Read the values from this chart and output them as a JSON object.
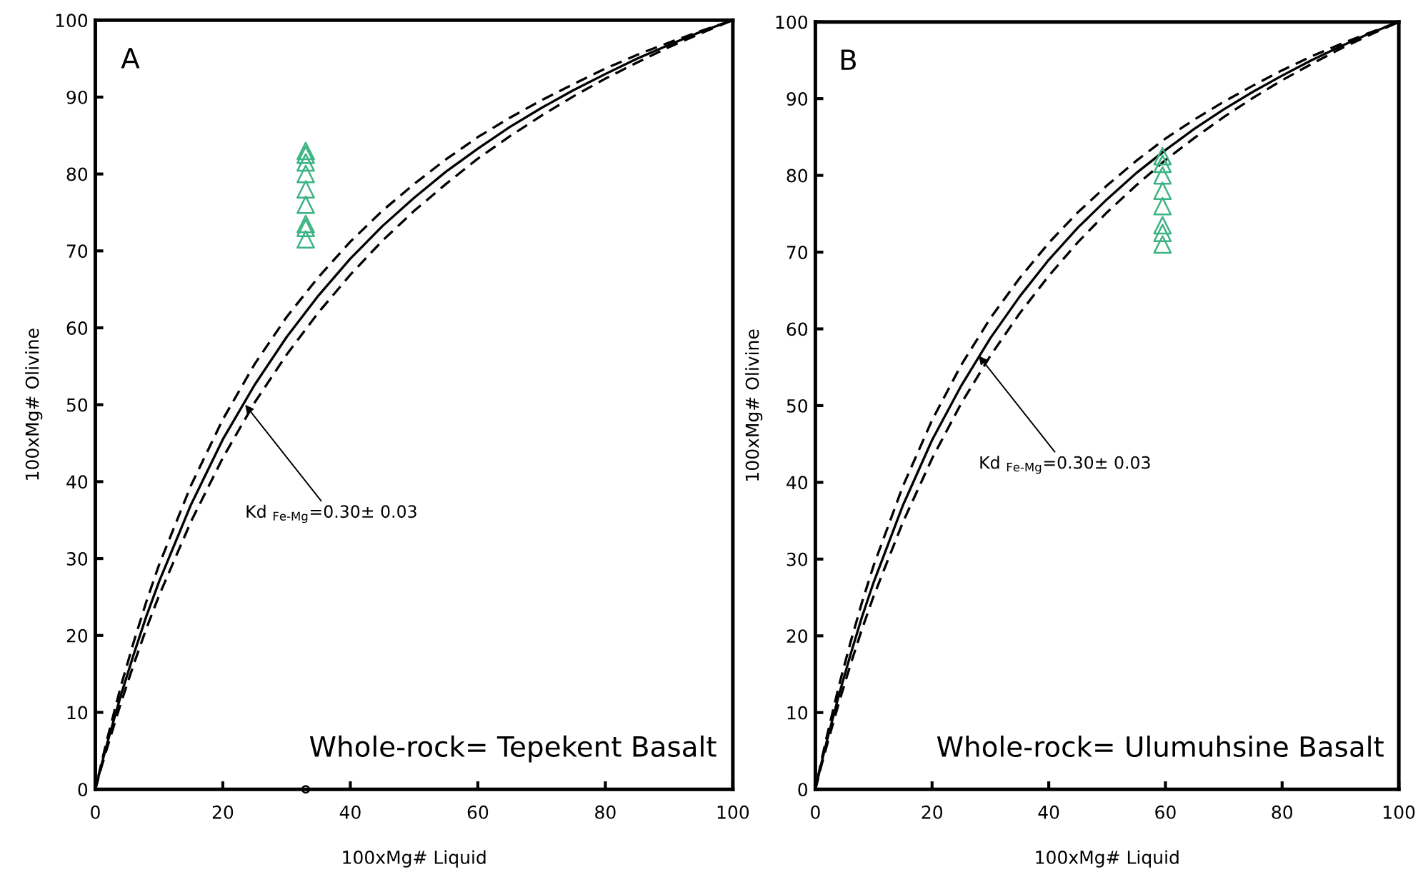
{
  "chart_data": [
    {
      "type": "scatter",
      "xlabel": "100xMg# Liquid",
      "ylabel": "100xMg# Olivine",
      "xlim": [
        0,
        100
      ],
      "ylim": [
        0,
        100
      ],
      "xticks": [
        0,
        20,
        40,
        60,
        80,
        100
      ],
      "yticks": [
        0,
        10,
        20,
        30,
        40,
        50,
        60,
        70,
        80,
        90,
        100
      ],
      "grid": false,
      "legend": false,
      "annotations": [
        "A",
        {
          "text": "Kd $_{Fe-Mg}$=0.30± 0.03",
          "x": 23.5,
          "y": 50
        },
        "Whole-rock= Tepekent Basalt"
      ],
      "series": [
        {
          "type": "line",
          "line_style": "solid",
          "marker": "none",
          "color": "#000000",
          "x": [
            0,
            1,
            2,
            4,
            6,
            8,
            10,
            15,
            20,
            25,
            30,
            35,
            40,
            45,
            50,
            55,
            60,
            65,
            70,
            75,
            80,
            85,
            90,
            95,
            100
          ],
          "values": [
            0,
            3.3,
            6.4,
            12.2,
            17.5,
            22.5,
            27.0,
            37.0,
            45.5,
            52.6,
            58.8,
            64.2,
            69.0,
            73.2,
            76.9,
            80.3,
            83.3,
            86.1,
            88.6,
            90.9,
            93.0,
            95.0,
            96.8,
            98.5,
            100
          ],
          "upper": [
            0,
            3.6,
            7.0,
            13.4,
            19.1,
            24.4,
            29.2,
            39.5,
            48.1,
            55.3,
            61.4,
            66.6,
            71.2,
            75.2,
            78.7,
            81.9,
            84.8,
            87.3,
            89.6,
            91.7,
            93.7,
            95.5,
            97.1,
            98.6,
            100
          ],
          "lower": [
            0,
            3.0,
            5.8,
            11.2,
            16.2,
            20.9,
            25.2,
            34.8,
            43.1,
            50.3,
            56.5,
            62.0,
            66.9,
            71.3,
            75.2,
            78.7,
            82.0,
            84.9,
            87.6,
            90.1,
            92.4,
            94.5,
            96.5,
            98.3,
            100
          ]
        },
        {
          "marker": "triangle",
          "color": "#3cb384",
          "x": [
            33,
            33,
            33,
            33,
            33,
            33,
            33,
            33,
            33
          ],
          "values": [
            83,
            82.5,
            81.5,
            80,
            78,
            76,
            73.5,
            73,
            71.5
          ]
        },
        {
          "marker": "circle",
          "color": "#000000",
          "x": [
            33
          ],
          "values": [
            0
          ]
        }
      ]
    },
    {
      "type": "scatter",
      "xlabel": "100xMg# Liquid",
      "ylabel": "100xMg# Olivine",
      "xlim": [
        0,
        100
      ],
      "ylim": [
        0,
        100
      ],
      "xticks": [
        0,
        20,
        40,
        60,
        80,
        100
      ],
      "yticks": [
        0,
        10,
        20,
        30,
        40,
        50,
        60,
        70,
        80,
        90,
        100
      ],
      "grid": false,
      "legend": false,
      "annotations": [
        "B",
        {
          "text": "Kd $_{Fe-Mg}$=0.30± 0.03",
          "x": 28,
          "y": 56.5
        },
        "Whole-rock= Ulumuhsine Basalt"
      ],
      "series": [
        {
          "type": "line",
          "line_style": "solid",
          "marker": "none",
          "color": "#000000",
          "x": [
            0,
            1,
            2,
            4,
            6,
            8,
            10,
            15,
            20,
            25,
            30,
            35,
            40,
            45,
            50,
            55,
            60,
            65,
            70,
            75,
            80,
            85,
            90,
            95,
            100
          ],
          "values": [
            0,
            3.3,
            6.4,
            12.2,
            17.5,
            22.5,
            27.0,
            37.0,
            45.5,
            52.6,
            58.8,
            64.2,
            69.0,
            73.2,
            76.9,
            80.3,
            83.3,
            86.1,
            88.6,
            90.9,
            93.0,
            95.0,
            96.8,
            98.5,
            100
          ],
          "upper": [
            0,
            3.6,
            7.0,
            13.4,
            19.1,
            24.4,
            29.2,
            39.5,
            48.1,
            55.3,
            61.4,
            66.6,
            71.2,
            75.2,
            78.7,
            81.9,
            84.8,
            87.3,
            89.6,
            91.7,
            93.7,
            95.5,
            97.1,
            98.6,
            100
          ],
          "lower": [
            0,
            3.0,
            5.8,
            11.2,
            16.2,
            20.9,
            25.2,
            34.8,
            43.1,
            50.3,
            56.5,
            62.0,
            66.9,
            71.3,
            75.2,
            78.7,
            82.0,
            84.9,
            87.6,
            90.1,
            92.4,
            94.5,
            96.5,
            98.3,
            100
          ]
        },
        {
          "marker": "triangle",
          "color": "#3cb384",
          "x": [
            59.5,
            59.5,
            59.5,
            59.5,
            59.5,
            59.5,
            59.5,
            59.5
          ],
          "values": [
            82.5,
            81.5,
            80,
            78,
            76,
            73.5,
            72.5,
            71
          ]
        }
      ]
    }
  ]
}
